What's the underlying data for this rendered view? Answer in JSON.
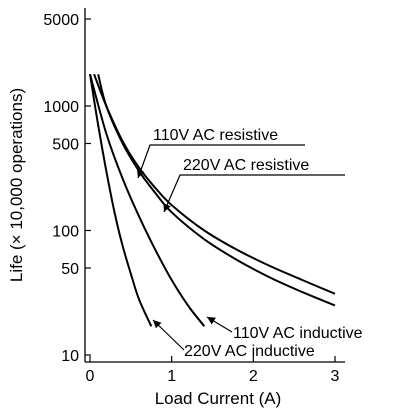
{
  "chart_data": {
    "type": "line",
    "title": "",
    "xlabel": "Load Current (A)",
    "ylabel": "Life (× 10,000 operations)",
    "x_scale": "linear",
    "y_scale": "log",
    "xlim": [
      0,
      3
    ],
    "ylim": [
      10,
      5000
    ],
    "x_ticks": [
      "0",
      "1",
      "2",
      "3"
    ],
    "y_ticks": [
      "10",
      "50",
      "100",
      "500",
      "1000",
      "5000"
    ],
    "grid": false,
    "legend": "none",
    "series": [
      {
        "name": "110V AC resistive",
        "x": [
          0.05,
          0.2,
          0.4,
          0.6,
          0.8,
          1.0,
          1.4,
          1.8,
          2.2,
          2.6,
          3.0
        ],
        "y": [
          1800,
          1000,
          520,
          320,
          220,
          160,
          100,
          70,
          52,
          40,
          31
        ]
      },
      {
        "name": "220V AC resistive",
        "x": [
          0.1,
          0.2,
          0.4,
          0.6,
          0.8,
          1.0,
          1.4,
          1.8,
          2.2,
          2.6,
          3.0
        ],
        "y": [
          1800,
          1000,
          500,
          300,
          200,
          140,
          85,
          58,
          42,
          32,
          25
        ]
      },
      {
        "name": "110V AC inductive",
        "x": [
          0.0,
          0.2,
          0.4,
          0.6,
          0.8,
          1.0,
          1.2,
          1.4
        ],
        "y": [
          1800,
          600,
          260,
          130,
          70,
          40,
          25,
          17
        ]
      },
      {
        "name": "220V AC inductive",
        "x": [
          0.0,
          0.1,
          0.2,
          0.3,
          0.4,
          0.5,
          0.6,
          0.75
        ],
        "y": [
          1800,
          700,
          300,
          140,
          75,
          45,
          28,
          17
        ]
      }
    ],
    "annotations": [
      "110V AC resistive",
      "220V AC resistive",
      "110V AC inductive",
      "220V AC inductive"
    ]
  }
}
